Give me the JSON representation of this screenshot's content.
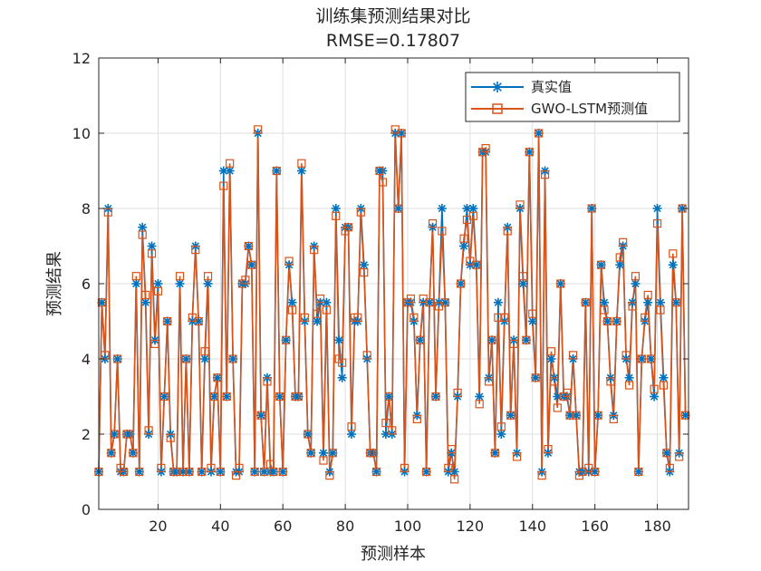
{
  "chart_data": {
    "type": "line",
    "title": "训练集预测结果对比",
    "subtitle": "RMSE=0.17807",
    "xlabel": "预测样本",
    "ylabel": "预测结果",
    "xlim": [
      1,
      190
    ],
    "ylim": [
      0,
      12
    ],
    "xticks": [
      20,
      40,
      60,
      80,
      100,
      120,
      140,
      160,
      180
    ],
    "yticks": [
      0,
      2,
      4,
      6,
      8,
      10,
      12
    ],
    "grid": true,
    "legend_position": "top-right",
    "series": [
      {
        "name": "真实值",
        "color": "#0072BD",
        "marker": "asterisk",
        "values": [
          1,
          5.5,
          4,
          8,
          1.5,
          2,
          4,
          1,
          1,
          2,
          2,
          1.5,
          6,
          1,
          7.5,
          5.5,
          2,
          7,
          4.5,
          6,
          1,
          3,
          5,
          2,
          1,
          1,
          6,
          1,
          4,
          1,
          5,
          7,
          5,
          1,
          4,
          6,
          1,
          3,
          3.5,
          1,
          9,
          3,
          9,
          4,
          1,
          1,
          6,
          6,
          7,
          6.5,
          1,
          10,
          2.5,
          1,
          3.5,
          1,
          1,
          9,
          3,
          1,
          4.5,
          6.5,
          5.5,
          3,
          3,
          9,
          5,
          2,
          1.5,
          7,
          5,
          5.5,
          1.5,
          5.5,
          1,
          1.5,
          8,
          4.5,
          3.5,
          7.5,
          7.5,
          2,
          5,
          5,
          8,
          6.5,
          4,
          1.5,
          1.5,
          1,
          9,
          9,
          2,
          3,
          2,
          10,
          8,
          10,
          1,
          5.5,
          5.5,
          5,
          2.5,
          4.5,
          5.5,
          1,
          5.5,
          7.5,
          3,
          5.5,
          8,
          5.5,
          1,
          1.5,
          1,
          3,
          6,
          7,
          8,
          6.5,
          8,
          6.5,
          3,
          9.5,
          9.5,
          3.5,
          4.5,
          1.5,
          5.5,
          2,
          5,
          7.5,
          2.5,
          4.5,
          1.5,
          8,
          6,
          4.5,
          9.5,
          5,
          3.5,
          10,
          1,
          9,
          1.5,
          4,
          3.5,
          3,
          6,
          3,
          3,
          2.5,
          4,
          2.5,
          1,
          1,
          5.5,
          1,
          8,
          1,
          2.5,
          6.5,
          5.5,
          5,
          3.5,
          2.5,
          5,
          6.5,
          7,
          4,
          3.5,
          5.5,
          6,
          1,
          4,
          5,
          5.5,
          4,
          3,
          8,
          5.5,
          3.5,
          1.5,
          1,
          6.5,
          5.5,
          1.5,
          8,
          2.5
        ]
      },
      {
        "name": "GWO-LSTM预测值",
        "color": "#D95319",
        "marker": "square",
        "values": [
          1,
          5.5,
          4.1,
          7.9,
          1.5,
          2,
          4,
          1.1,
          1,
          2,
          2,
          1.5,
          6.2,
          1,
          7.3,
          5.7,
          2.1,
          6.8,
          4.4,
          5.8,
          1.1,
          3,
          5,
          1.9,
          1,
          1,
          6.2,
          1,
          4,
          1,
          5.1,
          6.9,
          5,
          1,
          4.2,
          6.2,
          1.1,
          3,
          3.5,
          1,
          8.6,
          3,
          9.2,
          4,
          0.9,
          1.1,
          6,
          6.1,
          7,
          6.5,
          1,
          10.1,
          2.5,
          1,
          3.4,
          1.2,
          1,
          9,
          3,
          1,
          4.5,
          6.6,
          5.3,
          3,
          3,
          9.2,
          5.1,
          2,
          1.5,
          6.9,
          5.2,
          5.6,
          1.3,
          5.3,
          0.9,
          1.5,
          7.8,
          4,
          3.9,
          7.4,
          7.5,
          2.2,
          5.1,
          5.1,
          7.9,
          6.3,
          4.1,
          1.5,
          1.5,
          1,
          9,
          8.7,
          2.3,
          3,
          2.1,
          10.1,
          8,
          10,
          1.1,
          5.5,
          5.6,
          5.1,
          2.4,
          4.5,
          5.6,
          1,
          5.5,
          7.6,
          3,
          5.4,
          7.4,
          5.5,
          1.1,
          1.6,
          0.8,
          3.1,
          6,
          7.2,
          7.7,
          6.6,
          7.8,
          6.5,
          2.8,
          9.5,
          9.6,
          3.4,
          4.5,
          1.5,
          5.1,
          2.2,
          5.1,
          7.4,
          2.5,
          4.4,
          1.4,
          8.1,
          6.2,
          4.5,
          9.5,
          5.2,
          3.5,
          10,
          0.9,
          8.9,
          1.6,
          4.2,
          3.4,
          2.7,
          6,
          3,
          3.1,
          2.5,
          4.1,
          2.5,
          0.9,
          1,
          5.5,
          1.1,
          8,
          1,
          2.5,
          6.5,
          5.3,
          5,
          3.4,
          2.4,
          5,
          6.7,
          7.1,
          4.1,
          3.3,
          5.4,
          6.2,
          1,
          4,
          5.1,
          5.7,
          4,
          3.2,
          7.6,
          5.3,
          3.3,
          1.5,
          1.1,
          6.8,
          5.5,
          1.4,
          8,
          2.5
        ]
      }
    ]
  }
}
